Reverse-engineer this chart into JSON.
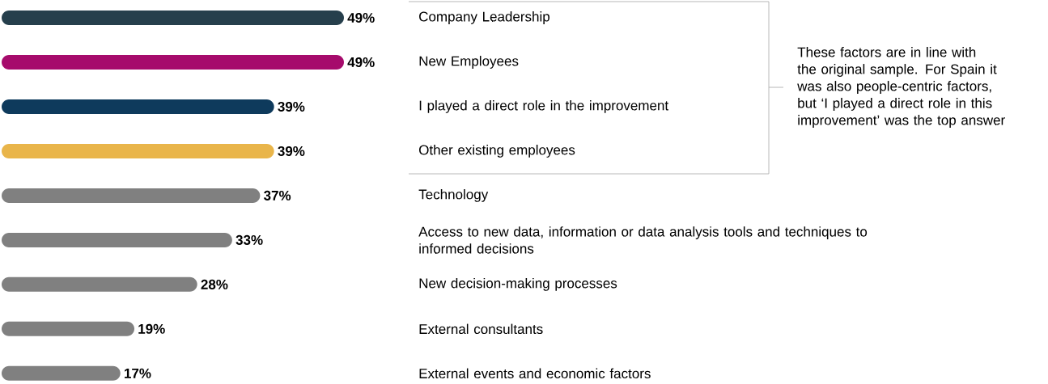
{
  "chart_data": {
    "type": "bar",
    "orientation": "horizontal",
    "categories": [
      "Company Leadership",
      "New Employees",
      "I played a direct role in the improvement",
      "Other existing employees",
      "Technology",
      "Access to new data, information or data analysis tools and techniques to informed decisions",
      "New decision-making processes",
      "External consultants",
      "External events and economic factors"
    ],
    "values": [
      49,
      49,
      39,
      39,
      37,
      33,
      28,
      19,
      17
    ],
    "value_labels": [
      "49%",
      "49%",
      "39%",
      "39%",
      "37%",
      "33%",
      "28%",
      "19%",
      "17%"
    ],
    "colors": [
      "#263f4c",
      "#a60b6c",
      "#0e3a5c",
      "#e9b54a",
      "#808080",
      "#808080",
      "#808080",
      "#808080",
      "#808080"
    ],
    "annotations": [
      "These factors are in line with the original sample. For Spain it was also people-centric factors, but ‘I played a direct role in this improvement’ was the top answer"
    ]
  }
}
